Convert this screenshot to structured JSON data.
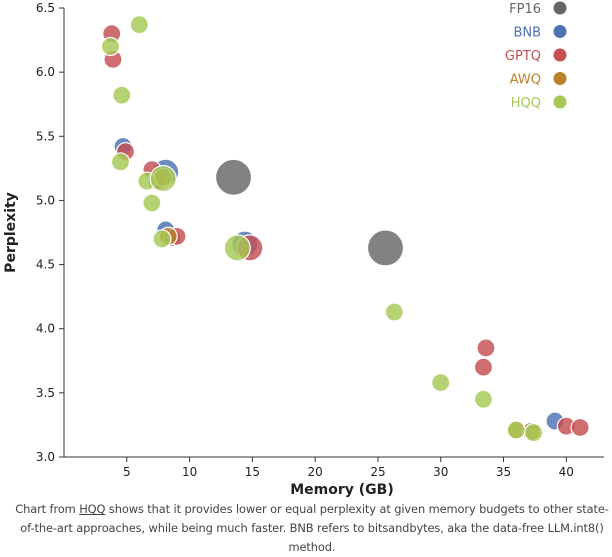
{
  "chart_data": {
    "type": "scatter",
    "xlabel": "Memory (GB)",
    "ylabel": "Perplexity",
    "xlim": [
      0,
      43
    ],
    "ylim": [
      3.0,
      6.5
    ],
    "xticks": [
      5,
      10,
      15,
      20,
      25,
      30,
      35,
      40
    ],
    "yticks": [
      3.0,
      3.5,
      4.0,
      4.5,
      5.0,
      5.5,
      6.0,
      6.5
    ],
    "tick_labels_x": [
      "5",
      "10",
      "15",
      "20",
      "25",
      "30",
      "35",
      "40"
    ],
    "tick_labels_y": [
      "3.0",
      "3.5",
      "4.0",
      "4.5",
      "5.0",
      "5.5",
      "6.0",
      "6.5"
    ],
    "grid": false,
    "legend_position": "top-right",
    "series": [
      {
        "name": "FP16",
        "color": "#666666",
        "points": [
          {
            "x": 13.5,
            "y": 5.18,
            "size": "large"
          },
          {
            "x": 25.6,
            "y": 4.63,
            "size": "large"
          }
        ]
      },
      {
        "name": "BNB",
        "color": "#4c72b0",
        "points": [
          {
            "x": 4.7,
            "y": 5.42,
            "size": "small"
          },
          {
            "x": 8.1,
            "y": 5.22,
            "size": "medium"
          },
          {
            "x": 8.1,
            "y": 4.77,
            "size": "small"
          },
          {
            "x": 14.4,
            "y": 4.66,
            "size": "medium"
          },
          {
            "x": 39.1,
            "y": 3.28,
            "size": "small"
          }
        ]
      },
      {
        "name": "GPTQ",
        "color": "#c44e52",
        "points": [
          {
            "x": 3.8,
            "y": 6.3,
            "size": "small"
          },
          {
            "x": 3.9,
            "y": 6.1,
            "size": "small"
          },
          {
            "x": 4.9,
            "y": 5.38,
            "size": "small"
          },
          {
            "x": 7.0,
            "y": 5.24,
            "size": "small"
          },
          {
            "x": 7.4,
            "y": 5.15,
            "size": "small"
          },
          {
            "x": 8.6,
            "y": 4.71,
            "size": "small"
          },
          {
            "x": 9.0,
            "y": 4.72,
            "size": "small"
          },
          {
            "x": 14.8,
            "y": 4.63,
            "size": "medium"
          },
          {
            "x": 33.6,
            "y": 3.85,
            "size": "small"
          },
          {
            "x": 33.4,
            "y": 3.7,
            "size": "small"
          },
          {
            "x": 40.0,
            "y": 3.24,
            "size": "small"
          },
          {
            "x": 41.1,
            "y": 3.23,
            "size": "small"
          }
        ]
      },
      {
        "name": "AWQ",
        "color": "#b8832c",
        "points": [
          {
            "x": 7.9,
            "y": 5.18,
            "size": "small"
          },
          {
            "x": 8.3,
            "y": 4.72,
            "size": "small"
          },
          {
            "x": 36.1,
            "y": 3.21,
            "size": "small"
          },
          {
            "x": 37.2,
            "y": 3.2,
            "size": "small"
          }
        ]
      },
      {
        "name": "HQQ",
        "color": "#a6c956",
        "points": [
          {
            "x": 6.0,
            "y": 6.37,
            "size": "small"
          },
          {
            "x": 3.7,
            "y": 6.2,
            "size": "small"
          },
          {
            "x": 4.6,
            "y": 5.82,
            "size": "small"
          },
          {
            "x": 4.5,
            "y": 5.3,
            "size": "small"
          },
          {
            "x": 6.6,
            "y": 5.15,
            "size": "small"
          },
          {
            "x": 7.9,
            "y": 5.17,
            "size": "medium"
          },
          {
            "x": 7.0,
            "y": 4.98,
            "size": "small"
          },
          {
            "x": 7.8,
            "y": 4.7,
            "size": "small"
          },
          {
            "x": 13.8,
            "y": 4.63,
            "size": "medium"
          },
          {
            "x": 26.3,
            "y": 4.13,
            "size": "small"
          },
          {
            "x": 30.0,
            "y": 3.58,
            "size": "small"
          },
          {
            "x": 33.4,
            "y": 3.45,
            "size": "small"
          },
          {
            "x": 36.0,
            "y": 3.21,
            "size": "small"
          },
          {
            "x": 37.4,
            "y": 3.19,
            "size": "small"
          }
        ]
      }
    ]
  },
  "caption": {
    "before_link": "Chart from ",
    "link": "HQQ",
    "after_link": " shows that it provides lower or equal perplexity at given memory budgets to other state-of-the-art approaches, while being much faster. BNB refers to bitsandbytes, aka the data-free LLM.int8() method."
  }
}
